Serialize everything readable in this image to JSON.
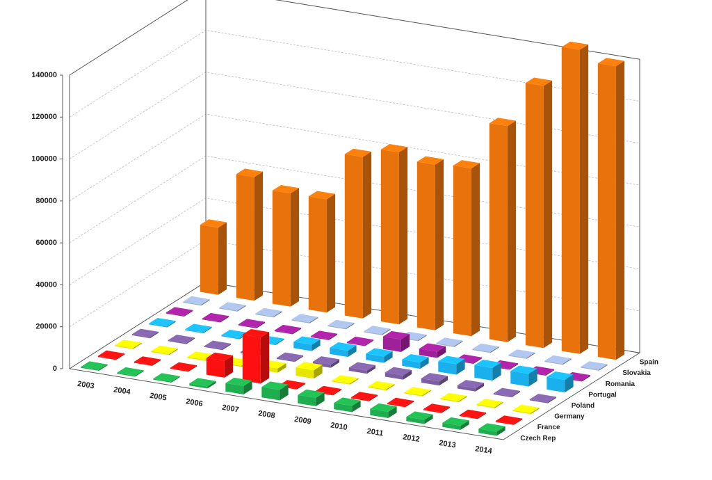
{
  "chart_data": {
    "type": "bar3d",
    "categories": [
      "2003",
      "2004",
      "2005",
      "2006",
      "2007",
      "2008",
      "2009",
      "2010",
      "2011",
      "2012",
      "2013",
      "2014"
    ],
    "series": [
      {
        "name": "Czech Rep",
        "color": "#1fae4f",
        "values": [
          500,
          500,
          500,
          1000,
          4000,
          5000,
          4000,
          3000,
          3000,
          2000,
          2000,
          2000
        ]
      },
      {
        "name": "France",
        "color": "#ff1010",
        "values": [
          500,
          500,
          500,
          8000,
          22000,
          500,
          500,
          500,
          500,
          500,
          500,
          500
        ]
      },
      {
        "name": "Germany",
        "color": "#e6e600",
        "values": [
          500,
          500,
          500,
          500,
          2000,
          4000,
          500,
          500,
          500,
          500,
          500,
          500
        ]
      },
      {
        "name": "Poland",
        "color": "#7b5fa0",
        "values": [
          500,
          500,
          500,
          500,
          500,
          1500,
          1500,
          2000,
          2000,
          1500,
          500,
          500
        ]
      },
      {
        "name": "Portugal",
        "color": "#1ab0ee",
        "values": [
          500,
          500,
          500,
          500,
          3000,
          3000,
          3000,
          3000,
          5000,
          6000,
          6000,
          6000
        ]
      },
      {
        "name": "Romania",
        "color": "#a0209a",
        "values": [
          500,
          500,
          500,
          500,
          500,
          500,
          6000,
          3000,
          500,
          500,
          500,
          500
        ]
      },
      {
        "name": "Slovakia",
        "color": "#9fb3d6",
        "values": [
          500,
          500,
          500,
          500,
          500,
          500,
          500,
          500,
          500,
          500,
          500,
          500
        ]
      },
      {
        "name": "Spain",
        "color": "#e8730c",
        "values": [
          32000,
          59000,
          54000,
          54000,
          77000,
          82000,
          79000,
          80000,
          103000,
          125000,
          145000,
          140000
        ]
      }
    ],
    "ylim": [
      0,
      140000
    ],
    "yticks": [
      0,
      20000,
      40000,
      60000,
      80000,
      100000,
      120000,
      140000
    ],
    "grid": true
  }
}
